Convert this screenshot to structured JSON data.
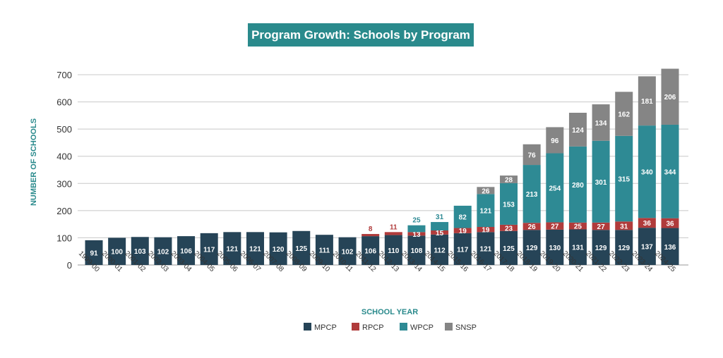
{
  "chart_data": {
    "type": "bar",
    "stacked": true,
    "title": "Program Growth: Schools by Program",
    "xlabel": "SCHOOL YEAR",
    "ylabel": "NUMBER OF SCHOOLS",
    "ylim": [
      0,
      700
    ],
    "yticks": [
      0,
      100,
      200,
      300,
      400,
      500,
      600,
      700
    ],
    "grid": true,
    "legend_position": "bottom",
    "categories": [
      "1999-00",
      "2000-01",
      "2001-02",
      "2002-03",
      "2003-04",
      "2004-05",
      "2005-06",
      "2006-07",
      "2007-08",
      "2008-09",
      "2009-10",
      "2010-11",
      "2011-12",
      "2012-13",
      "2013-14",
      "2014-15",
      "2015-16",
      "2016-17",
      "2017-18",
      "2018-19",
      "2019-20",
      "2020-21",
      "2021-22",
      "2022-23",
      "2023-24",
      "2024-25"
    ],
    "series": [
      {
        "name": "MPCP",
        "color": "#264457",
        "values": [
          91,
          100,
          103,
          102,
          106,
          117,
          121,
          121,
          120,
          125,
          111,
          102,
          106,
          110,
          108,
          112,
          117,
          121,
          125,
          129,
          130,
          131,
          129,
          129,
          137,
          136
        ]
      },
      {
        "name": "RPCP",
        "color": "#b03b3b",
        "values": [
          0,
          0,
          0,
          0,
          0,
          0,
          0,
          0,
          0,
          0,
          0,
          0,
          8,
          11,
          13,
          15,
          19,
          19,
          23,
          26,
          27,
          25,
          27,
          31,
          36,
          36
        ]
      },
      {
        "name": "WPCP",
        "color": "#2e8a94",
        "values": [
          0,
          0,
          0,
          0,
          0,
          0,
          0,
          0,
          0,
          0,
          0,
          0,
          0,
          0,
          25,
          31,
          82,
          121,
          153,
          213,
          254,
          280,
          301,
          315,
          340,
          344
        ]
      },
      {
        "name": "SNSP",
        "color": "#858585",
        "values": [
          0,
          0,
          0,
          0,
          0,
          0,
          0,
          0,
          0,
          0,
          0,
          0,
          0,
          0,
          0,
          0,
          0,
          26,
          28,
          76,
          96,
          124,
          134,
          162,
          181,
          206
        ]
      }
    ]
  }
}
